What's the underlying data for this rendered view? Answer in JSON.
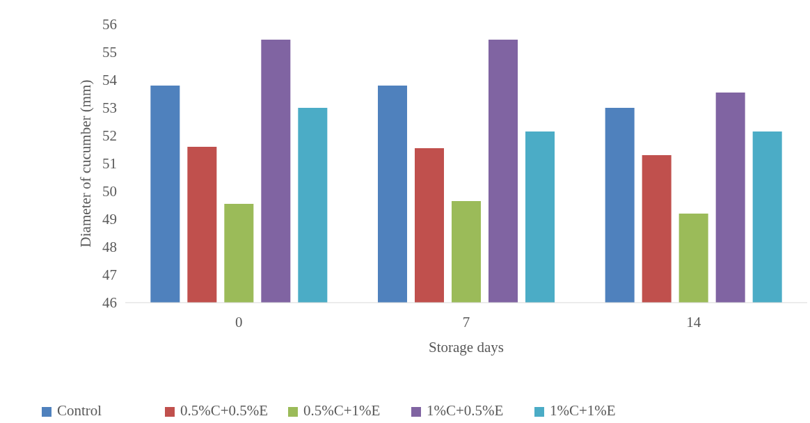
{
  "chart_data": {
    "type": "bar",
    "xlabel": "Storage days",
    "ylabel": "Diameter of cucumber (mm)",
    "categories": [
      "0",
      "7",
      "14"
    ],
    "series": [
      {
        "name": "Control",
        "color": "#4f81bd",
        "values": [
          53.8,
          53.8,
          53.0
        ]
      },
      {
        "name": "0.5%C+0.5%E",
        "color": "#c0504d",
        "values": [
          51.6,
          51.55,
          51.3
        ]
      },
      {
        "name": "0.5%C+1%E",
        "color": "#9bbb59",
        "values": [
          49.55,
          49.65,
          49.2
        ]
      },
      {
        "name": "1%C+0.5%E",
        "color": "#8064a2",
        "values": [
          55.45,
          55.45,
          53.55
        ]
      },
      {
        "name": "1%C+1%E",
        "color": "#4bacc6",
        "values": [
          53.0,
          52.15,
          52.15
        ]
      }
    ],
    "ylim": [
      46,
      56
    ],
    "yticks": [
      46,
      47,
      48,
      49,
      50,
      51,
      52,
      53,
      54,
      55,
      56
    ],
    "grid": false,
    "legend": "bottom"
  }
}
